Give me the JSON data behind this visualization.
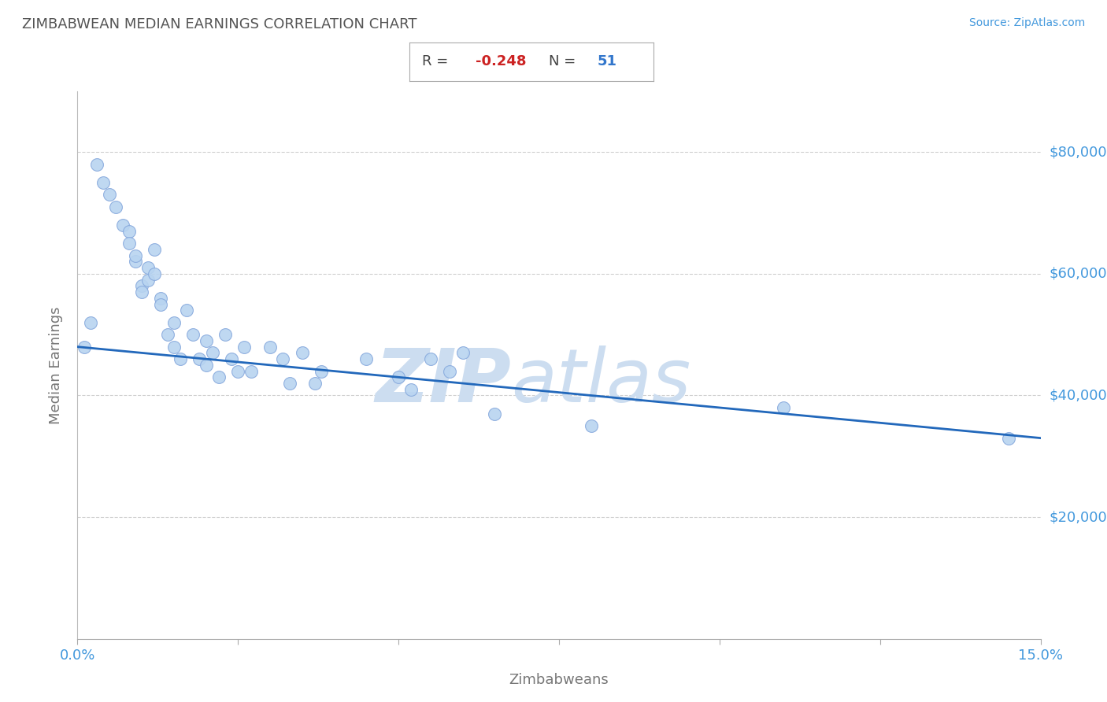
{
  "title": "ZIMBABWEAN MEDIAN EARNINGS CORRELATION CHART",
  "source": "Source: ZipAtlas.com",
  "xlabel": "Zimbabweans",
  "ylabel": "Median Earnings",
  "R": -0.248,
  "N": 51,
  "xmin": 0.0,
  "xmax": 0.15,
  "ymin": 0,
  "ymax": 90000,
  "yticks": [
    20000,
    40000,
    60000,
    80000
  ],
  "scatter_color": "#b8d4f0",
  "scatter_edge_color": "#88aadd",
  "line_color": "#2268bb",
  "title_color": "#555555",
  "axis_label_color": "#777777",
  "tick_label_color": "#4499dd",
  "r_value_color": "#cc2222",
  "n_value_color": "#3377cc",
  "watermark_color": "#ccddf0",
  "watermark_text": "ZIPatlas",
  "regression_x0": 0.0,
  "regression_y0": 48000,
  "regression_x1": 0.15,
  "regression_y1": 33000,
  "scatter_x": [
    0.001,
    0.002,
    0.003,
    0.004,
    0.005,
    0.006,
    0.007,
    0.008,
    0.008,
    0.009,
    0.009,
    0.01,
    0.01,
    0.011,
    0.011,
    0.012,
    0.012,
    0.013,
    0.013,
    0.014,
    0.015,
    0.015,
    0.016,
    0.017,
    0.018,
    0.019,
    0.02,
    0.02,
    0.021,
    0.022,
    0.023,
    0.024,
    0.025,
    0.026,
    0.027,
    0.03,
    0.032,
    0.033,
    0.035,
    0.037,
    0.038,
    0.045,
    0.05,
    0.052,
    0.055,
    0.058,
    0.06,
    0.065,
    0.11,
    0.145,
    0.08
  ],
  "scatter_y": [
    48000,
    52000,
    78000,
    75000,
    73000,
    71000,
    68000,
    67000,
    65000,
    62000,
    63000,
    58000,
    57000,
    61000,
    59000,
    64000,
    60000,
    56000,
    55000,
    50000,
    52000,
    48000,
    46000,
    54000,
    50000,
    46000,
    49000,
    45000,
    47000,
    43000,
    50000,
    46000,
    44000,
    48000,
    44000,
    48000,
    46000,
    42000,
    47000,
    42000,
    44000,
    46000,
    43000,
    41000,
    46000,
    44000,
    47000,
    37000,
    38000,
    33000,
    35000
  ]
}
